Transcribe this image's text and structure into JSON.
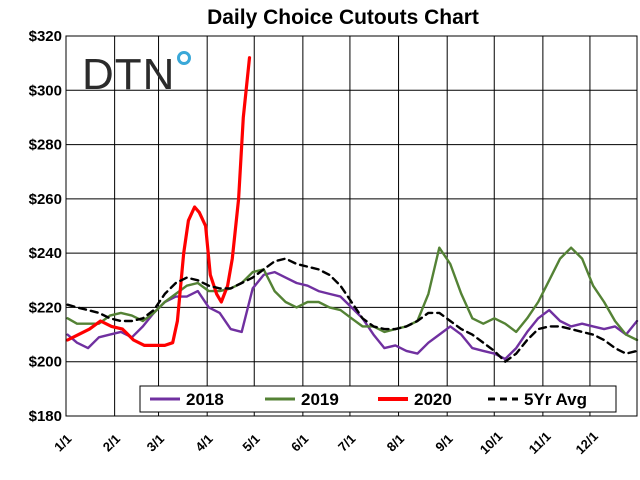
{
  "chart_data": {
    "type": "line",
    "title": "Daily Choice Cutouts Chart",
    "xlabel": "",
    "ylabel": "",
    "ylim": [
      180,
      320
    ],
    "xlim": [
      "01-01",
      "12-31"
    ],
    "yticks": [
      "$180",
      "$200",
      "$220",
      "$240",
      "$260",
      "$280",
      "$300",
      "$320"
    ],
    "xticks": [
      "1/1",
      "2/1",
      "3/1",
      "4/1",
      "5/1",
      "6/1",
      "7/1",
      "8/1",
      "9/1",
      "10/1",
      "11/1",
      "12/1"
    ],
    "grid": true,
    "legend_position": "bottom",
    "logo": "DTN",
    "series": [
      {
        "name": "2018",
        "color": "#7030a0",
        "dash": "solid",
        "points": [
          [
            "01-02",
            210
          ],
          [
            "01-08",
            207
          ],
          [
            "01-15",
            205
          ],
          [
            "01-22",
            209
          ],
          [
            "01-29",
            210
          ],
          [
            "02-05",
            211
          ],
          [
            "02-12",
            209
          ],
          [
            "02-19",
            213
          ],
          [
            "02-26",
            218
          ],
          [
            "03-05",
            222
          ],
          [
            "03-12",
            224
          ],
          [
            "03-19",
            224
          ],
          [
            "03-26",
            226
          ],
          [
            "04-02",
            220
          ],
          [
            "04-09",
            218
          ],
          [
            "04-16",
            212
          ],
          [
            "04-23",
            211
          ],
          [
            "04-30",
            227
          ],
          [
            "05-07",
            232
          ],
          [
            "05-14",
            233
          ],
          [
            "05-21",
            231
          ],
          [
            "05-28",
            229
          ],
          [
            "06-04",
            228
          ],
          [
            "06-11",
            226
          ],
          [
            "06-18",
            225
          ],
          [
            "06-25",
            224
          ],
          [
            "07-02",
            220
          ],
          [
            "07-09",
            216
          ],
          [
            "07-16",
            210
          ],
          [
            "07-23",
            205
          ],
          [
            "07-30",
            206
          ],
          [
            "08-06",
            204
          ],
          [
            "08-13",
            203
          ],
          [
            "08-20",
            207
          ],
          [
            "08-27",
            210
          ],
          [
            "09-03",
            213
          ],
          [
            "09-10",
            210
          ],
          [
            "09-17",
            205
          ],
          [
            "09-24",
            204
          ],
          [
            "10-01",
            203
          ],
          [
            "10-08",
            201
          ],
          [
            "10-15",
            205
          ],
          [
            "10-22",
            211
          ],
          [
            "10-29",
            216
          ],
          [
            "11-05",
            219
          ],
          [
            "11-12",
            215
          ],
          [
            "11-19",
            213
          ],
          [
            "11-26",
            214
          ],
          [
            "12-03",
            213
          ],
          [
            "12-10",
            212
          ],
          [
            "12-17",
            213
          ],
          [
            "12-24",
            210
          ],
          [
            "12-31",
            215
          ]
        ]
      },
      {
        "name": "2019",
        "color": "#548235",
        "dash": "solid",
        "points": [
          [
            "01-02",
            216
          ],
          [
            "01-08",
            214
          ],
          [
            "01-15",
            214
          ],
          [
            "01-22",
            214
          ],
          [
            "01-29",
            217
          ],
          [
            "02-05",
            218
          ],
          [
            "02-12",
            217
          ],
          [
            "02-19",
            215
          ],
          [
            "02-26",
            218
          ],
          [
            "03-05",
            222
          ],
          [
            "03-12",
            225
          ],
          [
            "03-19",
            228
          ],
          [
            "03-26",
            229
          ],
          [
            "04-02",
            226
          ],
          [
            "04-09",
            226
          ],
          [
            "04-16",
            227
          ],
          [
            "04-23",
            229
          ],
          [
            "04-30",
            233
          ],
          [
            "05-07",
            234
          ],
          [
            "05-14",
            226
          ],
          [
            "05-21",
            222
          ],
          [
            "05-28",
            220
          ],
          [
            "06-04",
            222
          ],
          [
            "06-11",
            222
          ],
          [
            "06-18",
            220
          ],
          [
            "06-25",
            219
          ],
          [
            "07-02",
            216
          ],
          [
            "07-09",
            213
          ],
          [
            "07-16",
            213
          ],
          [
            "07-23",
            211
          ],
          [
            "07-30",
            212
          ],
          [
            "08-06",
            213
          ],
          [
            "08-13",
            215
          ],
          [
            "08-20",
            225
          ],
          [
            "08-27",
            242
          ],
          [
            "09-03",
            236
          ],
          [
            "09-10",
            225
          ],
          [
            "09-17",
            216
          ],
          [
            "09-24",
            214
          ],
          [
            "10-01",
            216
          ],
          [
            "10-08",
            214
          ],
          [
            "10-15",
            211
          ],
          [
            "10-22",
            216
          ],
          [
            "10-29",
            222
          ],
          [
            "11-05",
            230
          ],
          [
            "11-12",
            238
          ],
          [
            "11-19",
            242
          ],
          [
            "11-26",
            238
          ],
          [
            "12-03",
            228
          ],
          [
            "12-10",
            222
          ],
          [
            "12-17",
            215
          ],
          [
            "12-24",
            210
          ],
          [
            "12-31",
            208
          ]
        ]
      },
      {
        "name": "2020",
        "color": "#ff0000",
        "dash": "solid",
        "points": [
          [
            "01-02",
            208
          ],
          [
            "01-09",
            210
          ],
          [
            "01-16",
            212
          ],
          [
            "01-23",
            215
          ],
          [
            "01-30",
            213
          ],
          [
            "02-06",
            212
          ],
          [
            "02-13",
            208
          ],
          [
            "02-20",
            206
          ],
          [
            "02-27",
            206
          ],
          [
            "03-05",
            206
          ],
          [
            "03-10",
            207
          ],
          [
            "03-13",
            215
          ],
          [
            "03-17",
            240
          ],
          [
            "03-20",
            252
          ],
          [
            "03-24",
            257
          ],
          [
            "03-27",
            255
          ],
          [
            "03-31",
            250
          ],
          [
            "04-03",
            232
          ],
          [
            "04-07",
            225
          ],
          [
            "04-10",
            222
          ],
          [
            "04-14",
            228
          ],
          [
            "04-17",
            238
          ],
          [
            "04-21",
            260
          ],
          [
            "04-24",
            290
          ],
          [
            "04-28",
            312
          ]
        ]
      },
      {
        "name": "5Yr Avg",
        "color": "#000000",
        "dash": "dashed",
        "points": [
          [
            "01-02",
            221
          ],
          [
            "01-08",
            220
          ],
          [
            "01-15",
            219
          ],
          [
            "01-22",
            218
          ],
          [
            "01-29",
            216
          ],
          [
            "02-05",
            215
          ],
          [
            "02-12",
            215
          ],
          [
            "02-19",
            216
          ],
          [
            "02-26",
            219
          ],
          [
            "03-05",
            225
          ],
          [
            "03-12",
            229
          ],
          [
            "03-19",
            231
          ],
          [
            "03-26",
            230
          ],
          [
            "04-02",
            228
          ],
          [
            "04-09",
            227
          ],
          [
            "04-16",
            227
          ],
          [
            "04-23",
            229
          ],
          [
            "04-30",
            231
          ],
          [
            "05-07",
            234
          ],
          [
            "05-14",
            237
          ],
          [
            "05-21",
            238
          ],
          [
            "05-28",
            236
          ],
          [
            "06-04",
            235
          ],
          [
            "06-11",
            234
          ],
          [
            "06-18",
            232
          ],
          [
            "06-25",
            228
          ],
          [
            "07-02",
            222
          ],
          [
            "07-09",
            216
          ],
          [
            "07-16",
            213
          ],
          [
            "07-23",
            212
          ],
          [
            "07-30",
            212
          ],
          [
            "08-06",
            213
          ],
          [
            "08-13",
            215
          ],
          [
            "08-20",
            218
          ],
          [
            "08-27",
            218
          ],
          [
            "09-03",
            215
          ],
          [
            "09-10",
            212
          ],
          [
            "09-17",
            210
          ],
          [
            "09-24",
            207
          ],
          [
            "10-01",
            204
          ],
          [
            "10-08",
            200
          ],
          [
            "10-15",
            203
          ],
          [
            "10-22",
            208
          ],
          [
            "10-29",
            212
          ],
          [
            "11-05",
            213
          ],
          [
            "11-12",
            213
          ],
          [
            "11-19",
            212
          ],
          [
            "11-26",
            211
          ],
          [
            "12-03",
            210
          ],
          [
            "12-10",
            208
          ],
          [
            "12-17",
            205
          ],
          [
            "12-24",
            203
          ],
          [
            "12-31",
            204
          ]
        ]
      }
    ]
  }
}
